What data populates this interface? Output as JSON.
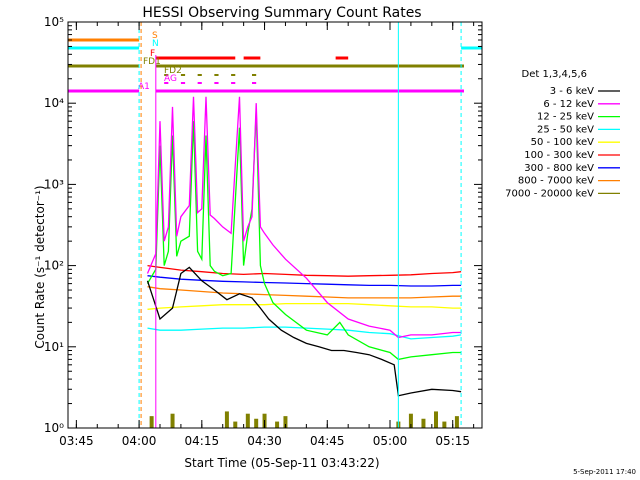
{
  "chart_data": {
    "type": "line",
    "title": "HESSI Observing Summary Count Rates",
    "xlabel": "Start Time (05-Sep-11 03:43:22)",
    "ylabel": "Count Rate (s⁻¹ detector⁻¹)",
    "yscale": "log",
    "ylim": [
      1,
      100000
    ],
    "xlim_minutes_after_0343": [
      0,
      99
    ],
    "x_ticks": [
      "03:45",
      "04:00",
      "04:15",
      "04:30",
      "04:45",
      "05:00",
      "05:15"
    ],
    "y_ticks": [
      "10⁰",
      "10¹",
      "10²",
      "10³",
      "10⁴",
      "10⁵"
    ],
    "legend_title": "Det 1,3,4,5,6",
    "legend_position": "right",
    "timestamp": "5-Sep-2011 17:40",
    "flags": [
      {
        "label": "S",
        "color": "#ff7f00",
        "segments": [
          [
            "03:43",
            "04:00"
          ]
        ]
      },
      {
        "label": "N",
        "color": "#00ffff",
        "segments": [
          [
            "03:43",
            "04:00"
          ],
          [
            "05:17",
            "05:19"
          ]
        ]
      },
      {
        "label": "F",
        "color": "#ff0000",
        "segments": [
          [
            "04:04",
            "04:23"
          ],
          [
            "04:25",
            "04:29"
          ],
          [
            "04:47",
            "04:50"
          ]
        ]
      },
      {
        "label": "FD1",
        "color": "#808000",
        "segments": [
          [
            "03:43",
            "04:00"
          ],
          [
            "04:04",
            "05:19"
          ]
        ]
      },
      {
        "label": "FD2",
        "color": "#808000",
        "segments": [
          [
            "04:06",
            "04:07"
          ],
          [
            "04:10",
            "04:11"
          ],
          [
            "04:14",
            "04:15"
          ],
          [
            "04:18",
            "04:19"
          ],
          [
            "04:22",
            "04:23"
          ],
          [
            "04:27",
            "04:28"
          ]
        ]
      },
      {
        "label": "AG",
        "color": "#ff00ff",
        "segments": [
          [
            "04:06",
            "04:07"
          ],
          [
            "04:10",
            "04:11"
          ],
          [
            "04:14",
            "04:15"
          ],
          [
            "04:18",
            "04:19"
          ],
          [
            "04:22",
            "04:23"
          ],
          [
            "04:27",
            "04:28"
          ]
        ]
      },
      {
        "label": "A1",
        "color": "#ff00ff",
        "segments": [
          [
            "03:43",
            "04:00"
          ],
          [
            "04:04",
            "05:19"
          ]
        ]
      }
    ],
    "series": [
      {
        "name": "3 - 6 keV",
        "color": "#000000",
        "x": [
          "04:02",
          "04:05",
          "04:08",
          "04:10",
          "04:12",
          "04:15",
          "04:18",
          "04:21",
          "04:24",
          "04:27",
          "04:29",
          "04:31",
          "04:34",
          "04:37",
          "04:40",
          "04:43",
          "04:46",
          "04:49",
          "04:52",
          "04:55",
          "04:58",
          "05:01",
          "05:02",
          "05:05",
          "05:10",
          "05:15",
          "05:17"
        ],
        "y": [
          65,
          22,
          30,
          80,
          95,
          65,
          50,
          38,
          45,
          40,
          30,
          22,
          16,
          13,
          11,
          10,
          9,
          9,
          8.5,
          8,
          7,
          6,
          2.5,
          2.7,
          3.0,
          2.9,
          2.8
        ]
      },
      {
        "name": "6 - 12 keV",
        "color": "#ff00ff",
        "x": [
          "04:02",
          "04:04",
          "04:05",
          "04:06",
          "04:07",
          "04:08",
          "04:09",
          "04:10",
          "04:12",
          "04:13",
          "04:14",
          "04:15",
          "04:16",
          "04:17",
          "04:18",
          "04:20",
          "04:22",
          "04:24",
          "04:25",
          "04:26",
          "04:27",
          "04:28",
          "04:29",
          "04:30",
          "04:32",
          "04:35",
          "04:40",
          "04:45",
          "04:50",
          "04:55",
          "05:00",
          "05:02",
          "05:05",
          "05:10",
          "05:15",
          "05:17"
        ],
        "y": [
          80,
          140,
          6000,
          200,
          300,
          9000,
          230,
          400,
          550,
          12000,
          450,
          500,
          12000,
          420,
          380,
          300,
          250,
          12000,
          200,
          300,
          400,
          10000,
          300,
          250,
          180,
          120,
          70,
          35,
          22,
          18,
          16,
          13,
          14,
          14,
          15,
          15
        ]
      },
      {
        "name": "12 - 25 keV",
        "color": "#00ff00",
        "x": [
          "04:02",
          "04:04",
          "04:05",
          "04:06",
          "04:07",
          "04:08",
          "04:09",
          "04:10",
          "04:12",
          "04:13",
          "04:14",
          "04:15",
          "04:16",
          "04:17",
          "04:18",
          "04:20",
          "04:22",
          "04:24",
          "04:25",
          "04:26",
          "04:27",
          "04:28",
          "04:29",
          "04:30",
          "04:32",
          "04:35",
          "04:40",
          "04:45",
          "04:48",
          "04:50",
          "04:55",
          "05:00",
          "05:02",
          "05:05",
          "05:10",
          "05:15",
          "05:17"
        ],
        "y": [
          60,
          90,
          3000,
          100,
          150,
          4000,
          130,
          200,
          230,
          6000,
          150,
          120,
          4000,
          100,
          85,
          75,
          80,
          5000,
          100,
          250,
          500,
          8000,
          100,
          60,
          35,
          25,
          16,
          14,
          20,
          14,
          10,
          8.5,
          7,
          7.5,
          8,
          8.5,
          8.5
        ]
      },
      {
        "name": "25 - 50 keV",
        "color": "#00ffff",
        "x": [
          "04:02",
          "04:05",
          "04:10",
          "04:15",
          "04:20",
          "04:25",
          "04:30",
          "04:35",
          "04:40",
          "04:45",
          "04:50",
          "04:55",
          "05:00",
          "05:05",
          "05:10",
          "05:15",
          "05:17"
        ],
        "y": [
          17,
          16,
          16,
          16.5,
          17,
          17,
          17.5,
          17.5,
          17,
          16.5,
          16,
          15,
          14.5,
          12.5,
          13,
          13.5,
          14
        ]
      },
      {
        "name": "50 - 100 keV",
        "color": "#ffff00",
        "x": [
          "04:02",
          "04:05",
          "04:10",
          "04:15",
          "04:20",
          "04:25",
          "04:30",
          "04:35",
          "04:40",
          "04:45",
          "04:50",
          "04:55",
          "05:00",
          "05:05",
          "05:10",
          "05:15",
          "05:17"
        ],
        "y": [
          29,
          30,
          31,
          32,
          33,
          33,
          33,
          34,
          34,
          34,
          34,
          33,
          32,
          31,
          31,
          30,
          30
        ]
      },
      {
        "name": "100 - 300 keV",
        "color": "#ff0000",
        "x": [
          "04:02",
          "04:05",
          "04:10",
          "04:15",
          "04:20",
          "04:25",
          "04:30",
          "04:35",
          "04:40",
          "04:45",
          "04:50",
          "04:55",
          "05:00",
          "05:05",
          "05:10",
          "05:15",
          "05:17"
        ],
        "y": [
          100,
          95,
          88,
          84,
          80,
          78,
          80,
          78,
          76,
          75,
          74,
          75,
          76,
          77,
          80,
          82,
          84
        ]
      },
      {
        "name": "300 - 800 keV",
        "color": "#0000ff",
        "x": [
          "04:02",
          "04:05",
          "04:10",
          "04:15",
          "04:20",
          "04:25",
          "04:30",
          "04:35",
          "04:40",
          "04:45",
          "04:50",
          "04:55",
          "05:00",
          "05:05",
          "05:10",
          "05:15",
          "05:17"
        ],
        "y": [
          75,
          72,
          68,
          66,
          64,
          63,
          62,
          61,
          60,
          59,
          58,
          57,
          57,
          56,
          56,
          57,
          57
        ]
      },
      {
        "name": "800 - 7000 keV",
        "color": "#ff7f00",
        "x": [
          "04:02",
          "04:05",
          "04:10",
          "04:15",
          "04:20",
          "04:25",
          "04:30",
          "04:35",
          "04:40",
          "04:45",
          "04:50",
          "04:55",
          "05:00",
          "05:05",
          "05:10",
          "05:15",
          "05:17"
        ],
        "y": [
          55,
          52,
          50,
          48,
          46,
          45,
          44,
          43,
          42,
          41,
          40,
          40,
          40,
          40,
          41,
          42,
          42
        ]
      },
      {
        "name": "7000 - 20000 keV",
        "color": "#808000",
        "x": [
          "04:03",
          "04:05",
          "04:08",
          "04:21",
          "04:23",
          "04:26",
          "04:28",
          "04:30",
          "04:33",
          "04:35",
          "05:02",
          "05:05",
          "05:08",
          "05:11",
          "05:13",
          "05:16"
        ],
        "y": [
          1.4,
          1.0,
          1.5,
          1.6,
          1.2,
          1.5,
          1.3,
          1.5,
          1.2,
          1.4,
          1.2,
          1.5,
          1.3,
          1.6,
          1.2,
          1.4
        ]
      }
    ]
  }
}
